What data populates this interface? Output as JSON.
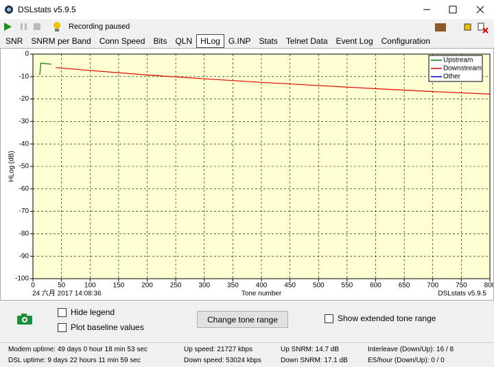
{
  "window": {
    "title": "DSLstats v5.9.5"
  },
  "toolbar": {
    "status": "Recording paused"
  },
  "tabs": [
    "SNR",
    "SNRM per Band",
    "Conn Speed",
    "Bits",
    "QLN",
    "HLog",
    "G.INP",
    "Stats",
    "Telnet Data",
    "Event Log",
    "Configuration"
  ],
  "chart_data": {
    "type": "line",
    "y_label": "HLog (dB)",
    "x_label": "Tone number",
    "timestamp": "24 六月 2017 14:08:36",
    "watermark": "DSLstats v5.9.5",
    "xlim": [
      0,
      800
    ],
    "ylim": [
      -100,
      0
    ],
    "xticks": [
      0,
      50,
      100,
      150,
      200,
      250,
      300,
      350,
      400,
      450,
      500,
      550,
      600,
      650,
      700,
      750,
      800
    ],
    "yticks": [
      0,
      -10,
      -20,
      -30,
      -40,
      -50,
      -60,
      -70,
      -80,
      -90,
      -100
    ],
    "grid": true,
    "legend": "top-right",
    "series": [
      {
        "name": "Upstream",
        "color": "#008000",
        "x": [
          11,
          12,
          14,
          32
        ],
        "values": [
          -9,
          -9,
          -4,
          -4.5
        ]
      },
      {
        "name": "Downstream",
        "color": "#e00000",
        "x": [
          40,
          100,
          200,
          300,
          400,
          500,
          600,
          700,
          800
        ],
        "values": [
          -6,
          -7.3,
          -9.3,
          -11,
          -12.6,
          -14,
          -15.4,
          -16.7,
          -17.8
        ]
      },
      {
        "name": "Other",
        "color": "#0000e0",
        "x": [],
        "values": []
      }
    ]
  },
  "controls": {
    "hide_legend": "Hide legend",
    "plot_baseline": "Plot baseline values",
    "change_range": "Change tone range",
    "extended_range": "Show extended tone range"
  },
  "status": [
    "Modem uptime: 49 days 0 hour 18 min 53 sec",
    "DSL uptime: 9 days 22 hours 11 min 59 sec",
    "Up speed: 21727 kbps",
    "Down speed: 53024 kbps",
    "Up SNRM: 14.7 dB",
    "Down SNRM: 17.1 dB",
    "Interleave (Down/Up): 16 / 8",
    "ES/hour (Down/Up): 0 / 0"
  ]
}
